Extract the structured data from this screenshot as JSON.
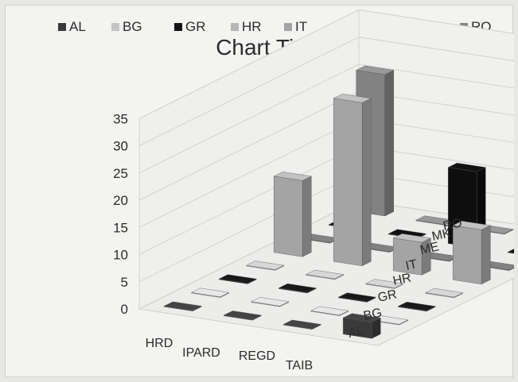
{
  "chart_data": {
    "type": "bar",
    "subtype": "3d-column",
    "title": "Chart Title",
    "categories": [
      "HRD",
      "IPARD",
      "REGD",
      "TAIB"
    ],
    "series": [
      {
        "name": "AL",
        "color": "#3a3a3a",
        "values": [
          0,
          0,
          0,
          3
        ]
      },
      {
        "name": "BG",
        "color": "#c4c4c4",
        "values": [
          0,
          0,
          0,
          0
        ]
      },
      {
        "name": "GR",
        "color": "#151515",
        "values": [
          0,
          0,
          0,
          0
        ]
      },
      {
        "name": "HR",
        "color": "#b6b6b6",
        "values": [
          0,
          0,
          0,
          0
        ]
      },
      {
        "name": "IT",
        "color": "#a4a4a4",
        "values": [
          14,
          30,
          6,
          10
        ]
      },
      {
        "name": "ME",
        "color": "#6e6e6e",
        "values": [
          0,
          0,
          0,
          0
        ]
      },
      {
        "name": "MK",
        "color": "#0e0e0e",
        "values": [
          0,
          0,
          14,
          0
        ]
      },
      {
        "name": "RO",
        "color": "#828282",
        "values": [
          26,
          0,
          0,
          18
        ]
      }
    ],
    "depth_labels": [
      "AL",
      "BG",
      "GR",
      "HR",
      "IT",
      "ME",
      "MK",
      "RO"
    ],
    "yticks": [
      0,
      5,
      10,
      15,
      20,
      25,
      30,
      35
    ],
    "ylim": [
      0,
      35
    ],
    "grid": true,
    "legend_position": "top"
  }
}
